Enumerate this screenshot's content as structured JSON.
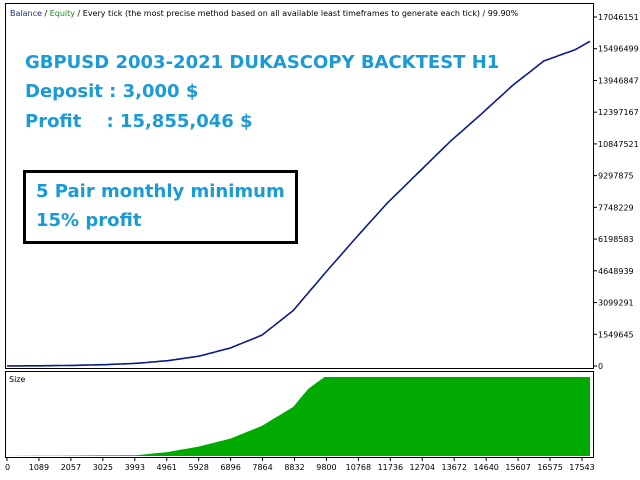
{
  "header": {
    "balance_label": "Balance",
    "separator": " / ",
    "equity_label": "Equity",
    "description": " / Every tick (the most precise method based on all available least timeframes to generate each tick)  /  99.90%"
  },
  "overlay": {
    "title": "GBPUSD 2003-2021 DUKASCOPY BACKTEST H1",
    "deposit_text": "Deposit : 3,000 $",
    "profit_text": "Profit    : 15,855,046 $",
    "callout_line1": "5 Pair monthly minimum",
    "callout_line2": "15% profit"
  },
  "subchart": {
    "label": "Size"
  },
  "colors": {
    "balance_line": "#0a1a8a",
    "size_fill": "#00aa00",
    "overlay_text": "#1a9ad6"
  },
  "chart_data": [
    {
      "type": "line",
      "series": [
        {
          "name": "Balance",
          "x": [
            0,
            1089,
            2057,
            3025,
            3993,
            4961,
            5928,
            6896,
            7864,
            8832,
            9800,
            10768,
            11736,
            12704,
            13672,
            14640,
            15607,
            16575,
            17543,
            18000
          ],
          "values": [
            3000,
            12000,
            30000,
            65000,
            130000,
            260000,
            480000,
            880000,
            1500000,
            2700000,
            4500000,
            6250000,
            7950000,
            9450000,
            10950000,
            12300000,
            13700000,
            14900000,
            15450000,
            15858046
          ]
        }
      ],
      "y_ticks": [
        "17046151",
        "15496499",
        "13946847",
        "12397167",
        "10847521",
        "9297875",
        "7748229",
        "6198583",
        "4648939",
        "3099291",
        "1549645",
        "0"
      ],
      "ylim": [
        0,
        17046151
      ],
      "xlim": [
        0,
        18000
      ]
    },
    {
      "type": "area",
      "series": [
        {
          "name": "Size",
          "x": [
            0,
            3993,
            4961,
            5928,
            6896,
            7864,
            8832,
            9300,
            9800,
            18000
          ],
          "values": [
            0,
            0.01,
            0.05,
            0.12,
            0.22,
            0.38,
            0.62,
            0.85,
            1,
            1
          ]
        }
      ],
      "x_ticks": [
        "0",
        "1089",
        "2057",
        "3025",
        "3993",
        "4961",
        "5928",
        "6896",
        "7864",
        "8832",
        "9800",
        "10768",
        "11736",
        "12704",
        "13672",
        "14640",
        "15607",
        "16575",
        "17543"
      ],
      "xlim": [
        0,
        18000
      ],
      "ylim": [
        0,
        1
      ]
    }
  ]
}
